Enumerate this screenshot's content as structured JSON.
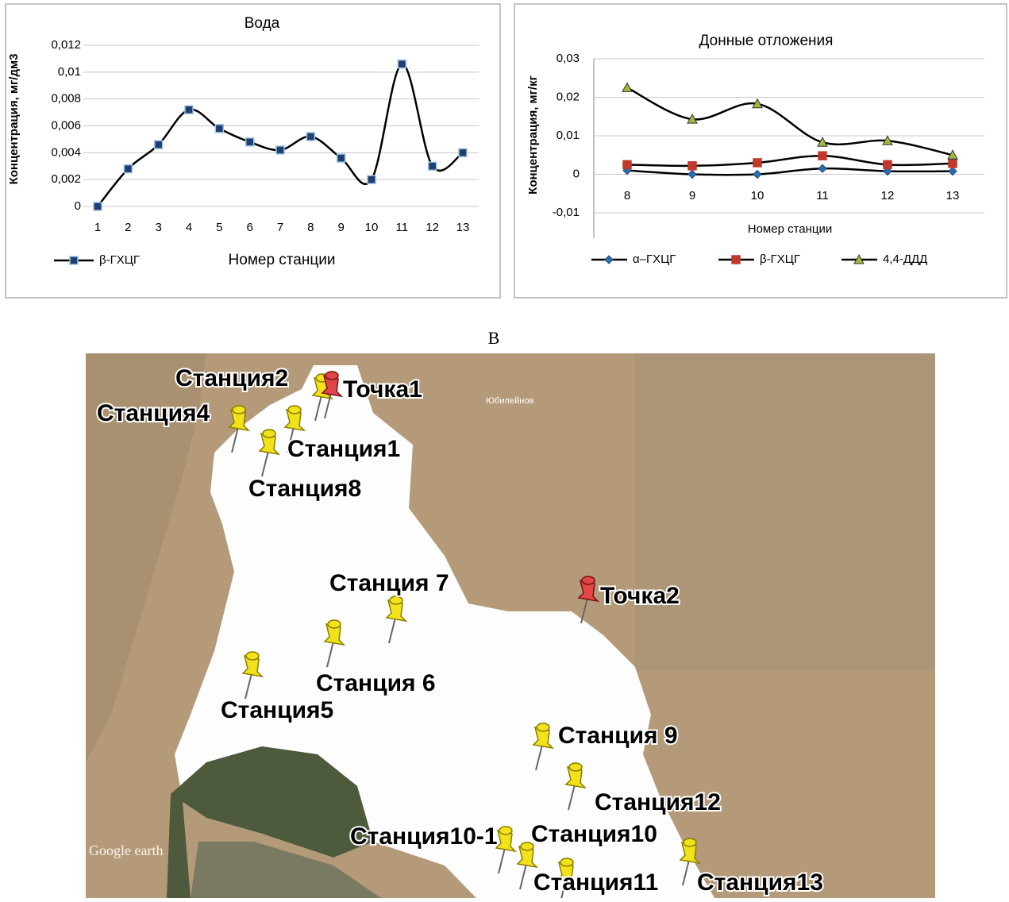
{
  "chart_data": [
    {
      "type": "line",
      "title": "Вода",
      "y_label": "Концентрация, мг/дм3",
      "x_label": "Номер станции",
      "categories": [
        "1",
        "2",
        "3",
        "4",
        "5",
        "6",
        "7",
        "8",
        "9",
        "10",
        "11",
        "12",
        "13"
      ],
      "series": [
        {
          "name": "β-ГХЦГ",
          "color": "#1f3f6e",
          "marker": "square",
          "values": [
            0,
            0.0028,
            0.0046,
            0.0072,
            0.0058,
            0.0048,
            0.0042,
            0.0052,
            0.0036,
            0.002,
            0.0106,
            0.003,
            0.004
          ]
        }
      ],
      "ylim": [
        0,
        0.012
      ],
      "yticks": [
        0,
        {
          "value": 0.002,
          "label": "0,002"
        },
        {
          "value": 0.004,
          "label": "0,004"
        },
        {
          "value": 0.006,
          "label": "0,006"
        },
        {
          "value": 0.008,
          "label": "0,008"
        },
        {
          "value": 0.01,
          "label": "0,01"
        },
        {
          "value": 0.012,
          "label": "0,012"
        }
      ],
      "grid": true,
      "line_color": "#000000",
      "legend": "bottom-left"
    },
    {
      "type": "line",
      "title": "Донные  отложения",
      "y_label": "Концентрация, мг/кг",
      "x_label": "Номер станции",
      "categories": [
        "8",
        "9",
        "10",
        "11",
        "12",
        "13"
      ],
      "series": [
        {
          "name": "α–ГХЦГ",
          "color": "#2e6db4",
          "marker": "diamond",
          "values": [
            0.001,
            0,
            0,
            0.0015,
            0.0008,
            0.0008
          ]
        },
        {
          "name": "β-ГХЦГ",
          "color": "#c0392b",
          "marker": "square",
          "values": [
            0.0025,
            0.0022,
            0.003,
            0.0048,
            0.0025,
            0.0028
          ]
        },
        {
          "name": "4,4-ДДД",
          "color": "#9bbb3b",
          "marker": "triangle",
          "values": [
            0.0225,
            0.0143,
            0.0183,
            0.0083,
            0.0087,
            0.005
          ]
        }
      ],
      "ylim": [
        -0.01,
        0.03
      ],
      "yticks": [
        {
          "value": -0.01,
          "label": "-0,01"
        },
        0,
        {
          "value": 0.01,
          "label": "0,01"
        },
        {
          "value": 0.02,
          "label": "0,02"
        },
        {
          "value": 0.03,
          "label": "0,03"
        }
      ],
      "grid": true,
      "line_color": "#000000",
      "legend": "bottom"
    }
  ],
  "figure_label": "В",
  "map": {
    "labels": [
      "Станция2",
      "Точка1",
      "Станция4",
      "Станция1",
      "Станция8",
      "Станция 7",
      "Точка2",
      "Станция 6",
      "Станция5",
      "Станция 9",
      "Станция12",
      "Станция10-1",
      "Станция10",
      "Станция11",
      "Станция13"
    ],
    "place_name": "Юбилейнов",
    "watermark": "Google earth"
  }
}
